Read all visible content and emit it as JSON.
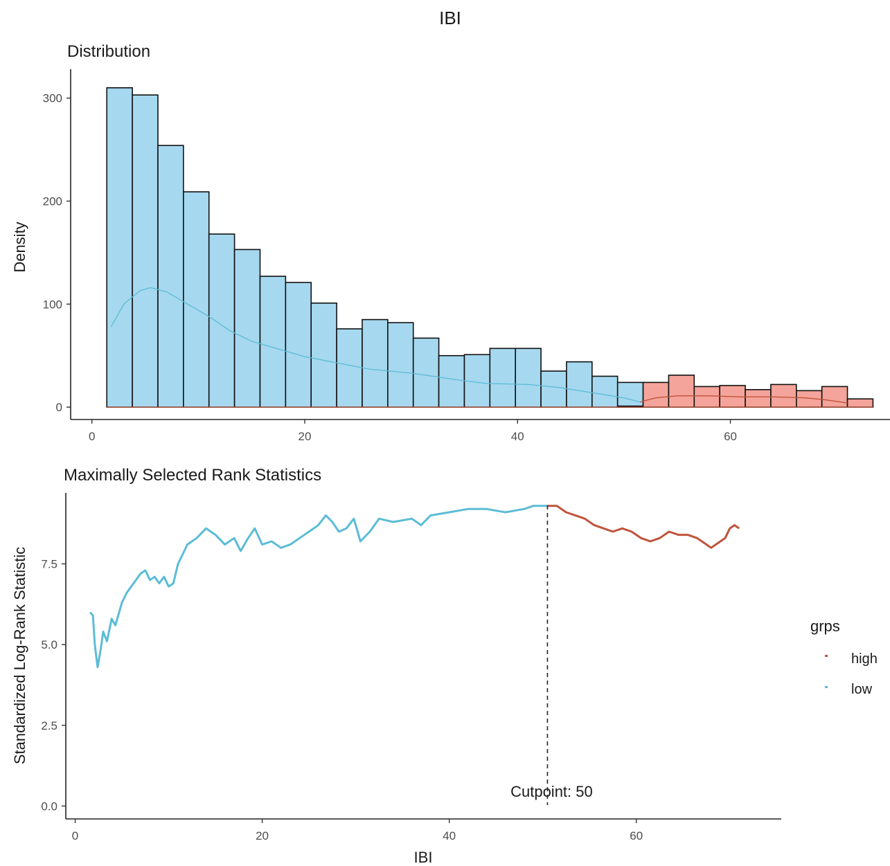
{
  "main_title": "IBI",
  "legend": {
    "title": "grps",
    "items": [
      {
        "label": "high",
        "color": "#c0533a"
      },
      {
        "label": "low",
        "color": "#5bbcd6"
      }
    ]
  },
  "chart_data": [
    {
      "type": "bar",
      "subtype": "histogram-with-density",
      "title": "Distribution",
      "xlabel": "",
      "ylabel": "Density",
      "xlim": [
        -2,
        75
      ],
      "ylim": [
        -12,
        328
      ],
      "x_ticks": [
        0,
        20,
        40,
        60
      ],
      "y_ticks": [
        0,
        100,
        200,
        300
      ],
      "bin_width": 2.4,
      "series": [
        {
          "name": "low",
          "color": "#a6d8ef",
          "bins": [
            {
              "x0": 1.4,
              "x1": 3.8,
              "value": 310
            },
            {
              "x0": 3.8,
              "x1": 6.2,
              "value": 303
            },
            {
              "x0": 6.2,
              "x1": 8.6,
              "value": 254
            },
            {
              "x0": 8.6,
              "x1": 11.0,
              "value": 209
            },
            {
              "x0": 11.0,
              "x1": 13.4,
              "value": 168
            },
            {
              "x0": 13.4,
              "x1": 15.8,
              "value": 153
            },
            {
              "x0": 15.8,
              "x1": 18.2,
              "value": 127
            },
            {
              "x0": 18.2,
              "x1": 20.6,
              "value": 121
            },
            {
              "x0": 20.6,
              "x1": 23.0,
              "value": 101
            },
            {
              "x0": 23.0,
              "x1": 25.4,
              "value": 76
            },
            {
              "x0": 25.4,
              "x1": 27.8,
              "value": 85
            },
            {
              "x0": 27.8,
              "x1": 30.2,
              "value": 82
            },
            {
              "x0": 30.2,
              "x1": 32.6,
              "value": 67
            },
            {
              "x0": 32.6,
              "x1": 35.0,
              "value": 50
            },
            {
              "x0": 35.0,
              "x1": 37.4,
              "value": 51
            },
            {
              "x0": 37.4,
              "x1": 39.8,
              "value": 57
            },
            {
              "x0": 39.8,
              "x1": 42.2,
              "value": 57
            },
            {
              "x0": 42.2,
              "x1": 44.6,
              "value": 35
            },
            {
              "x0": 44.6,
              "x1": 47.0,
              "value": 44
            },
            {
              "x0": 47.0,
              "x1": 49.4,
              "value": 30
            },
            {
              "x0": 49.4,
              "x1": 51.8,
              "value": 24
            },
            {
              "x0": 51.8,
              "x1": 54.2,
              "value": 1
            }
          ],
          "density": [
            [
              1.8,
              78
            ],
            [
              3.0,
              100
            ],
            [
              4.5,
              113
            ],
            [
              5.5,
              116
            ],
            [
              7.0,
              112
            ],
            [
              9.0,
              100
            ],
            [
              11.0,
              88
            ],
            [
              13.0,
              74
            ],
            [
              15.0,
              64
            ],
            [
              18.0,
              55
            ],
            [
              20.0,
              49
            ],
            [
              23.0,
              43
            ],
            [
              26.0,
              37
            ],
            [
              30.0,
              33
            ],
            [
              34.0,
              27
            ],
            [
              37.0,
              23
            ],
            [
              41.0,
              22
            ],
            [
              44.0,
              19
            ],
            [
              47.0,
              14
            ],
            [
              50.0,
              9
            ],
            [
              51.5,
              5
            ]
          ]
        },
        {
          "name": "high",
          "color": "#f4a49a",
          "bins": [
            {
              "x0": 49.4,
              "x1": 51.8,
              "value": 1
            },
            {
              "x0": 51.8,
              "x1": 54.2,
              "value": 24
            },
            {
              "x0": 54.2,
              "x1": 56.6,
              "value": 31
            },
            {
              "x0": 56.6,
              "x1": 59.0,
              "value": 20
            },
            {
              "x0": 59.0,
              "x1": 61.4,
              "value": 21
            },
            {
              "x0": 61.4,
              "x1": 63.8,
              "value": 17
            },
            {
              "x0": 63.8,
              "x1": 66.2,
              "value": 22
            },
            {
              "x0": 66.2,
              "x1": 68.6,
              "value": 16
            },
            {
              "x0": 68.6,
              "x1": 71.0,
              "value": 20
            },
            {
              "x0": 71.0,
              "x1": 73.4,
              "value": 8
            }
          ],
          "density": [
            [
              51.5,
              5
            ],
            [
              53.0,
              9
            ],
            [
              55.0,
              11
            ],
            [
              58.0,
              11
            ],
            [
              61.0,
              10
            ],
            [
              64.0,
              10
            ],
            [
              67.0,
              9
            ],
            [
              69.0,
              7
            ],
            [
              71.0,
              4
            ]
          ]
        }
      ]
    },
    {
      "type": "line",
      "title": "Maximally Selected Rank Statistics",
      "xlabel": "IBI",
      "ylabel": "Standardized Log-Rank Statistic",
      "xlim": [
        -1,
        75.5
      ],
      "ylim": [
        -0.4,
        9.7
      ],
      "x_ticks": [
        0,
        20,
        40,
        60
      ],
      "y_ticks": [
        0.0,
        2.5,
        5.0,
        7.5
      ],
      "y_tick_labels": [
        "0.0",
        "2.5",
        "5.0",
        "7.5"
      ],
      "cutpoint": {
        "value": 50.5,
        "label": "Cutpoint: 50"
      },
      "series": [
        {
          "name": "low",
          "color": "#5bbcd6",
          "points": [
            [
              1.6,
              6.0
            ],
            [
              1.9,
              5.9
            ],
            [
              2.1,
              5.0
            ],
            [
              2.4,
              4.3
            ],
            [
              2.7,
              4.8
            ],
            [
              3.0,
              5.4
            ],
            [
              3.4,
              5.1
            ],
            [
              3.9,
              5.8
            ],
            [
              4.3,
              5.6
            ],
            [
              4.7,
              6.0
            ],
            [
              5.0,
              6.3
            ],
            [
              5.5,
              6.6
            ],
            [
              6.0,
              6.8
            ],
            [
              6.5,
              7.0
            ],
            [
              7.0,
              7.2
            ],
            [
              7.5,
              7.3
            ],
            [
              8.0,
              7.0
            ],
            [
              8.5,
              7.1
            ],
            [
              9.0,
              6.9
            ],
            [
              9.5,
              7.1
            ],
            [
              10.0,
              6.8
            ],
            [
              10.5,
              6.9
            ],
            [
              11.0,
              7.5
            ],
            [
              11.5,
              7.8
            ],
            [
              12.0,
              8.1
            ],
            [
              13.0,
              8.3
            ],
            [
              14.0,
              8.6
            ],
            [
              15.0,
              8.4
            ],
            [
              16.0,
              8.1
            ],
            [
              17.0,
              8.3
            ],
            [
              17.7,
              7.9
            ],
            [
              18.5,
              8.3
            ],
            [
              19.2,
              8.6
            ],
            [
              20.0,
              8.1
            ],
            [
              21.0,
              8.2
            ],
            [
              22.0,
              8.0
            ],
            [
              23.0,
              8.1
            ],
            [
              24.0,
              8.3
            ],
            [
              25.0,
              8.5
            ],
            [
              26.0,
              8.7
            ],
            [
              26.8,
              9.0
            ],
            [
              27.5,
              8.8
            ],
            [
              28.2,
              8.5
            ],
            [
              29.0,
              8.6
            ],
            [
              29.8,
              8.9
            ],
            [
              30.5,
              8.2
            ],
            [
              31.5,
              8.5
            ],
            [
              32.5,
              8.9
            ],
            [
              34.0,
              8.8
            ],
            [
              36.0,
              8.9
            ],
            [
              37.0,
              8.7
            ],
            [
              38.0,
              9.0
            ],
            [
              40.0,
              9.1
            ],
            [
              42.0,
              9.2
            ],
            [
              44.0,
              9.2
            ],
            [
              46.0,
              9.1
            ],
            [
              48.0,
              9.2
            ],
            [
              49.0,
              9.3
            ],
            [
              50.5,
              9.3
            ]
          ]
        },
        {
          "name": "high",
          "color": "#c0533a",
          "points": [
            [
              50.5,
              9.3
            ],
            [
              51.5,
              9.3
            ],
            [
              52.5,
              9.1
            ],
            [
              53.5,
              9.0
            ],
            [
              54.5,
              8.9
            ],
            [
              55.5,
              8.7
            ],
            [
              56.5,
              8.6
            ],
            [
              57.5,
              8.5
            ],
            [
              58.5,
              8.6
            ],
            [
              59.5,
              8.5
            ],
            [
              60.5,
              8.3
            ],
            [
              61.5,
              8.2
            ],
            [
              62.5,
              8.3
            ],
            [
              63.5,
              8.5
            ],
            [
              64.5,
              8.4
            ],
            [
              65.5,
              8.4
            ],
            [
              66.5,
              8.3
            ],
            [
              67.5,
              8.1
            ],
            [
              68.0,
              8.0
            ],
            [
              68.5,
              8.1
            ],
            [
              69.5,
              8.3
            ],
            [
              70.0,
              8.6
            ],
            [
              70.5,
              8.7
            ],
            [
              71.0,
              8.6
            ]
          ]
        }
      ]
    }
  ]
}
